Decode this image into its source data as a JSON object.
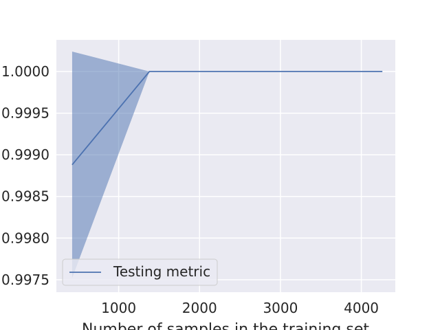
{
  "chart_data": {
    "type": "line",
    "xlabel": "Number of samples in the training set",
    "ylabel": "",
    "xlim": [
      230,
      4420
    ],
    "ylim": [
      0.99735,
      1.00038
    ],
    "x_ticks": [
      1000,
      2000,
      3000,
      4000
    ],
    "x_tick_labels": [
      "1000",
      "2000",
      "3000",
      "4000"
    ],
    "y_ticks": [
      0.9975,
      0.998,
      0.9985,
      0.999,
      0.9995,
      1.0
    ],
    "y_tick_labels": [
      "0.9975",
      "0.9980",
      "0.9985",
      "0.9990",
      "0.9995",
      "1.0000"
    ],
    "grid": true,
    "legend_position": "lower-left",
    "series": [
      {
        "name": "Testing metric",
        "color": "#4c72b0",
        "x": [
          425,
          1380,
          2340,
          3300,
          4260
        ],
        "y": [
          0.99888,
          1.0,
          1.0,
          1.0,
          1.0
        ],
        "band_upper": [
          1.00024,
          1.0,
          1.0,
          1.0,
          1.0
        ],
        "band_lower": [
          0.99752,
          1.0,
          1.0,
          1.0,
          1.0
        ],
        "band_color": "#4c72b0",
        "band_opacity": 0.5
      }
    ]
  }
}
